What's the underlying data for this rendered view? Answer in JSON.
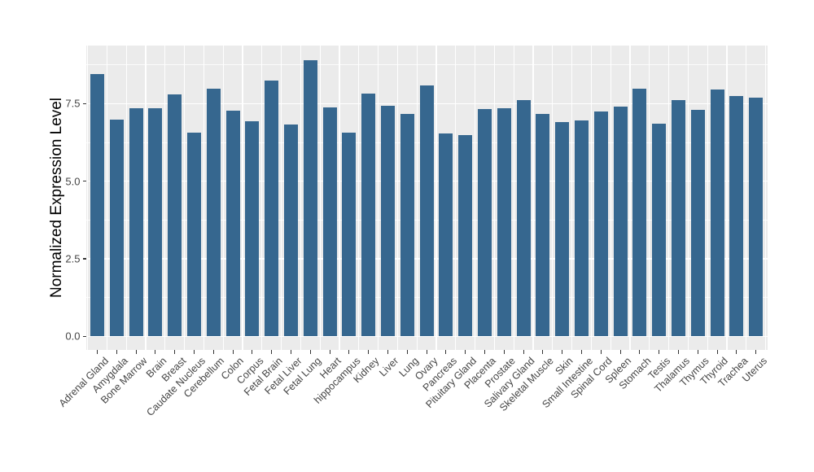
{
  "chart_data": {
    "type": "bar",
    "title": "",
    "xlabel": "",
    "ylabel": "Normalized Expression Level",
    "categories": [
      "Adrenal Gland",
      "Amygdala",
      "Bone Marrow",
      "Brain",
      "Breast",
      "Caudate Nucleus",
      "Cerebellum",
      "Colon",
      "Corpus",
      "Fetal Brain",
      "Fetal Liver",
      "Fetal Lung",
      "Heart",
      "hippocampus",
      "Kidney",
      "Liver",
      "Lung",
      "Ovary",
      "Pancreas",
      "Pituitary Gland",
      "Placenta",
      "Prostate",
      "Salivary Gland",
      "Skeletal Muscle",
      "Skin",
      "Small Intestine",
      "Spinal Cord",
      "Spleen",
      "Stomach",
      "Testis",
      "Thalamus",
      "Thymus",
      "Thyroid",
      "Trachea",
      "Uterus"
    ],
    "values": [
      8.45,
      6.98,
      7.36,
      7.34,
      7.81,
      6.57,
      7.99,
      7.28,
      6.94,
      8.24,
      6.82,
      8.9,
      7.39,
      6.56,
      7.83,
      7.42,
      7.16,
      8.1,
      6.54,
      6.48,
      7.33,
      7.36,
      7.62,
      7.18,
      6.91,
      6.97,
      7.26,
      7.41,
      7.99,
      6.86,
      7.61,
      7.3,
      7.96,
      7.75,
      7.7
    ],
    "ylim": [
      0,
      9.37
    ],
    "yticks": [
      {
        "value": 0.0,
        "label": "0.0"
      },
      {
        "value": 2.5,
        "label": "2.5"
      },
      {
        "value": 5.0,
        "label": "5.0"
      },
      {
        "value": 7.5,
        "label": "7.5"
      }
    ],
    "minor_yticks": [
      1.25,
      3.75,
      6.25,
      8.75
    ],
    "grid": "white major and minor gridlines on gray panel, vertical lines at category boundaries",
    "legend": "none",
    "style": {
      "bar_color": "#36678F",
      "panel_bg": "#EBEBEB",
      "grid_color": "#FFFFFF",
      "axis_text_color": "#454545",
      "axis_title_color": "#000000",
      "tick_color": "#333333"
    }
  }
}
